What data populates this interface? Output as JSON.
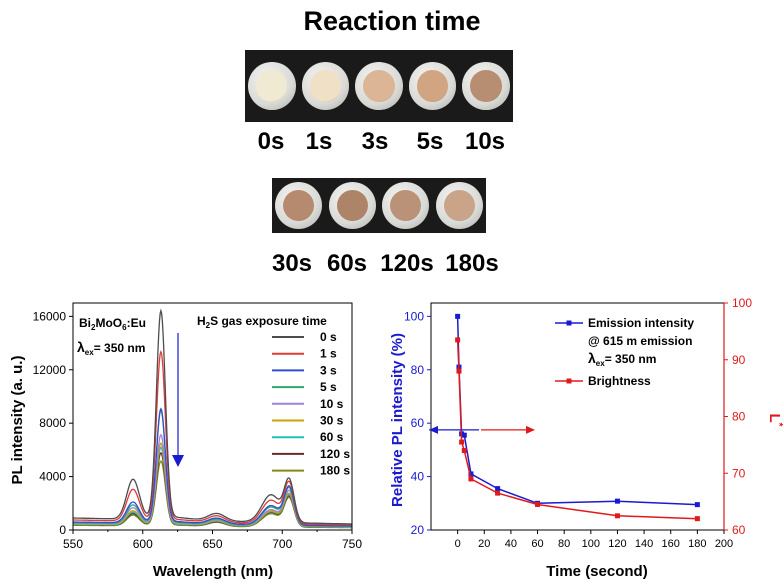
{
  "title": "Reaction time",
  "row1_labels": [
    "0s",
    "1s",
    "3s",
    "5s",
    "10s"
  ],
  "row2_labels": [
    "30s",
    "60s",
    "120s",
    "180s"
  ],
  "sample_colors_row1": [
    "#f1ead2",
    "#efe0c6",
    "#dcb596",
    "#d2a582",
    "#b88e72"
  ],
  "sample_colors_row2": [
    "#b58a6e",
    "#ae8468",
    "#b99277",
    "#c9a489"
  ],
  "chart_data": [
    {
      "type": "line",
      "title": "",
      "xlabel": "Wavelength (nm)",
      "ylabel": "PL intensity (a. u.)",
      "xlim": [
        550,
        750
      ],
      "ylim": [
        0,
        17000
      ],
      "xticks": [
        550,
        600,
        650,
        700,
        750
      ],
      "yticks": [
        0,
        4000,
        8000,
        12000,
        16000
      ],
      "sample_prefix": "Bi",
      "sample_sub1": "2",
      "sample_mid": "MoO",
      "sample_sub2": "6",
      "sample_suffix": ":Eu",
      "lambda_label": "λ",
      "lambda_sub": "ex",
      "lambda_value": "= 350 nm",
      "legend_title_a": "H",
      "legend_title_sub": "2",
      "legend_title_b": "S gas exposure time",
      "legend_position": "top-right",
      "peak_positions_nm": [
        593,
        613,
        653,
        692,
        705
      ],
      "series": [
        {
          "name": "0 s",
          "color": "#4d4d4d",
          "peak_values": [
            3500,
            16000,
            1100,
            2600,
            3600
          ],
          "baseline": 900
        },
        {
          "name": "1 s",
          "color": "#e03a3a",
          "peak_values": [
            2800,
            13000,
            950,
            2200,
            3400
          ],
          "baseline": 750
        },
        {
          "name": "3 s",
          "color": "#2f4fd0",
          "peak_values": [
            1900,
            8800,
            800,
            1800,
            3100
          ],
          "baseline": 600
        },
        {
          "name": "5 s",
          "color": "#2aa86e",
          "peak_values": [
            1700,
            8700,
            750,
            1700,
            3000
          ],
          "baseline": 550
        },
        {
          "name": "10 s",
          "color": "#a57fe0",
          "peak_values": [
            1500,
            6900,
            700,
            1500,
            2800
          ],
          "baseline": 500
        },
        {
          "name": "30 s",
          "color": "#c9a400",
          "peak_values": [
            1300,
            6300,
            650,
            1400,
            2600
          ],
          "baseline": 450
        },
        {
          "name": "60 s",
          "color": "#1fc0b8",
          "peak_values": [
            1200,
            6000,
            600,
            1350,
            2500
          ],
          "baseline": 400
        },
        {
          "name": "120 s",
          "color": "#6b2a2a",
          "peak_values": [
            1100,
            5600,
            560,
            1300,
            2400
          ],
          "baseline": 380
        },
        {
          "name": "180 s",
          "color": "#8a8a1a",
          "peak_values": [
            1000,
            5000,
            520,
            1200,
            2300
          ],
          "baseline": 350
        }
      ]
    },
    {
      "type": "line",
      "title": "",
      "xlabel": "Time (second)",
      "ylabel": "Relative PL intensity (%)",
      "y2label": "L",
      "y2label_sup": "*",
      "xlim": [
        -20,
        200
      ],
      "ylim": [
        20,
        105
      ],
      "y2lim": [
        60,
        100
      ],
      "xticks": [
        0,
        20,
        40,
        60,
        80,
        100,
        120,
        140,
        160,
        180,
        200
      ],
      "yticks": [
        20,
        40,
        60,
        80,
        100
      ],
      "y2ticks": [
        60,
        70,
        80,
        90,
        100
      ],
      "x": [
        0,
        1,
        3,
        5,
        10,
        30,
        60,
        120,
        180
      ],
      "legend_position": "top-right",
      "series": [
        {
          "name": "Emission intensity",
          "axis": "left",
          "color": "#1a1ad0",
          "values": [
            100,
            81,
            56,
            55.5,
            41,
            35.5,
            30,
            30.8,
            29.5
          ]
        },
        {
          "name": "Brightness",
          "axis": "right",
          "color": "#e01a1a",
          "values": [
            93.5,
            88,
            75.5,
            74,
            69,
            66.5,
            64.5,
            62.5,
            62
          ]
        }
      ],
      "legend_line2": "@ 615 m emission",
      "legend_lambda": "λ",
      "legend_lambda_sub": "ex",
      "legend_lambda_value": "= 350 nm"
    }
  ]
}
